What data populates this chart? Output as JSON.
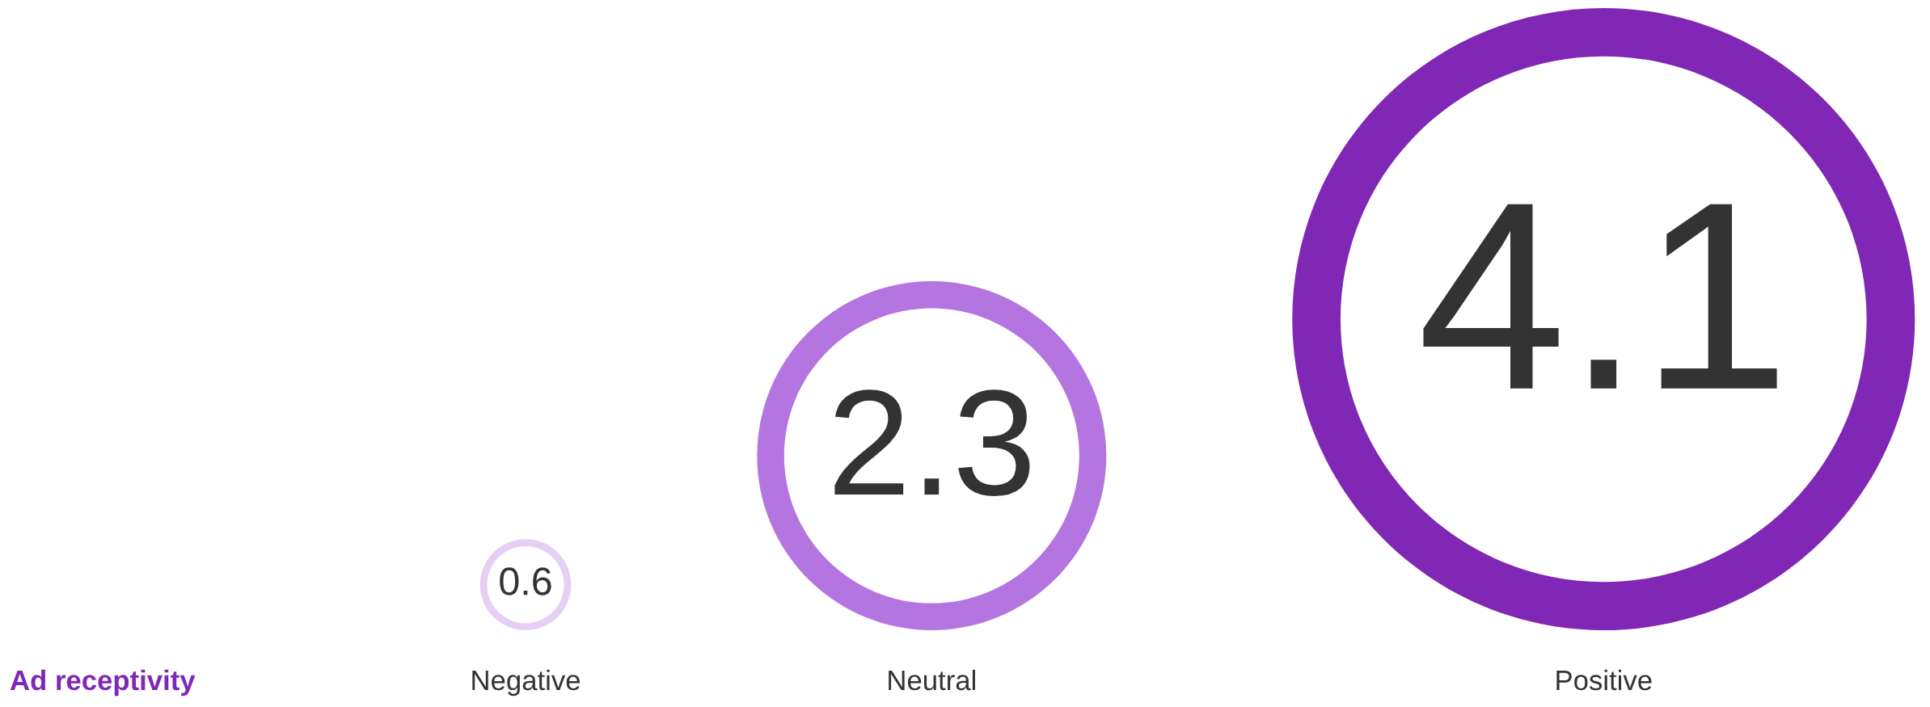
{
  "chart_data": {
    "type": "other",
    "title": "Ad receptivity",
    "categories": [
      "Negative",
      "Neutral",
      "Positive"
    ],
    "values": [
      0.6,
      2.3,
      4.1
    ],
    "colors": [
      "#e6cff5",
      "#b475e0",
      "#8028b5"
    ],
    "data_labels": true
  }
}
